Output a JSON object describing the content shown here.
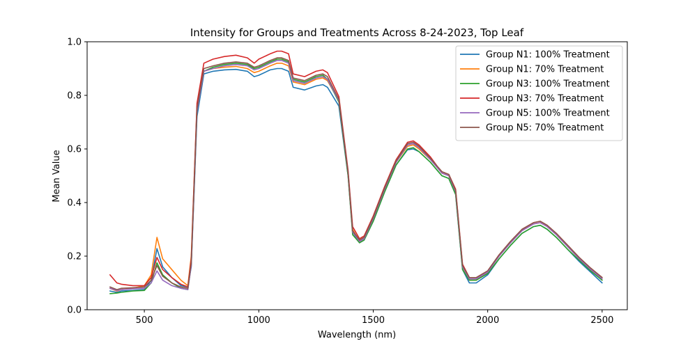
{
  "chart_data": {
    "type": "line",
    "title": "Intensity for Groups and Treatments Across 8-24-2023, Top Leaf",
    "xlabel": "Wavelength (nm)",
    "ylabel": "Mean Value",
    "xlim": [
      250,
      2610
    ],
    "ylim": [
      0,
      1.0
    ],
    "xticks": [
      500,
      1000,
      1500,
      2000,
      2500
    ],
    "yticks": [
      0.0,
      0.2,
      0.4,
      0.6,
      0.8,
      1.0
    ],
    "xtick_labels": [
      "500",
      "1000",
      "1500",
      "2000",
      "2500"
    ],
    "ytick_labels": [
      "0.0",
      "0.2",
      "0.4",
      "0.6",
      "0.8",
      "1.0"
    ],
    "grid": false,
    "legend_position": "top-right",
    "x": [
      350,
      380,
      400,
      450,
      500,
      530,
      555,
      580,
      620,
      660,
      690,
      705,
      730,
      760,
      800,
      850,
      900,
      950,
      980,
      1000,
      1050,
      1080,
      1100,
      1130,
      1150,
      1200,
      1250,
      1280,
      1300,
      1350,
      1390,
      1410,
      1440,
      1460,
      1500,
      1550,
      1600,
      1650,
      1675,
      1700,
      1750,
      1780,
      1800,
      1830,
      1860,
      1890,
      1920,
      1950,
      2000,
      2050,
      2100,
      2150,
      2200,
      2230,
      2260,
      2300,
      2350,
      2400,
      2450,
      2500
    ],
    "series": [
      {
        "name": "Group N1: 100% Treatment",
        "color": "#1f77b4",
        "values": [
          0.07,
          0.065,
          0.07,
          0.072,
          0.075,
          0.11,
          0.228,
          0.16,
          0.12,
          0.09,
          0.085,
          0.16,
          0.72,
          0.88,
          0.89,
          0.895,
          0.897,
          0.89,
          0.87,
          0.875,
          0.895,
          0.9,
          0.9,
          0.89,
          0.83,
          0.82,
          0.835,
          0.84,
          0.83,
          0.76,
          0.5,
          0.29,
          0.25,
          0.26,
          0.33,
          0.44,
          0.54,
          0.597,
          0.6,
          0.59,
          0.55,
          0.52,
          0.5,
          0.49,
          0.43,
          0.15,
          0.1,
          0.1,
          0.13,
          0.19,
          0.24,
          0.285,
          0.31,
          0.315,
          0.3,
          0.27,
          0.225,
          0.18,
          0.14,
          0.1
        ]
      },
      {
        "name": "Group N1: 70% Treatment",
        "color": "#ff7f0e",
        "values": [
          0.08,
          0.07,
          0.075,
          0.08,
          0.09,
          0.13,
          0.27,
          0.19,
          0.15,
          0.11,
          0.09,
          0.2,
          0.76,
          0.89,
          0.9,
          0.905,
          0.908,
          0.9,
          0.885,
          0.89,
          0.91,
          0.92,
          0.92,
          0.91,
          0.85,
          0.84,
          0.86,
          0.865,
          0.855,
          0.78,
          0.51,
          0.3,
          0.255,
          0.265,
          0.34,
          0.45,
          0.55,
          0.61,
          0.615,
          0.6,
          0.56,
          0.53,
          0.51,
          0.5,
          0.44,
          0.16,
          0.11,
          0.11,
          0.14,
          0.2,
          0.25,
          0.295,
          0.32,
          0.325,
          0.31,
          0.28,
          0.235,
          0.19,
          0.15,
          0.11
        ]
      },
      {
        "name": "Group N3: 100% Treatment",
        "color": "#2ca02c",
        "values": [
          0.06,
          0.062,
          0.065,
          0.07,
          0.072,
          0.1,
          0.175,
          0.13,
          0.1,
          0.08,
          0.075,
          0.17,
          0.74,
          0.89,
          0.905,
          0.915,
          0.92,
          0.915,
          0.9,
          0.905,
          0.925,
          0.935,
          0.935,
          0.925,
          0.86,
          0.85,
          0.87,
          0.875,
          0.86,
          0.775,
          0.5,
          0.28,
          0.25,
          0.26,
          0.33,
          0.44,
          0.54,
          0.6,
          0.605,
          0.59,
          0.55,
          0.52,
          0.5,
          0.49,
          0.43,
          0.15,
          0.11,
          0.11,
          0.135,
          0.19,
          0.24,
          0.285,
          0.31,
          0.315,
          0.3,
          0.27,
          0.225,
          0.185,
          0.145,
          0.11
        ]
      },
      {
        "name": "Group N3: 70% Treatment",
        "color": "#d62728",
        "values": [
          0.13,
          0.1,
          0.095,
          0.09,
          0.09,
          0.12,
          0.195,
          0.15,
          0.12,
          0.095,
          0.085,
          0.19,
          0.77,
          0.92,
          0.935,
          0.945,
          0.95,
          0.94,
          0.92,
          0.935,
          0.955,
          0.965,
          0.965,
          0.955,
          0.88,
          0.87,
          0.89,
          0.895,
          0.885,
          0.795,
          0.52,
          0.31,
          0.265,
          0.275,
          0.35,
          0.46,
          0.56,
          0.625,
          0.63,
          0.615,
          0.57,
          0.535,
          0.515,
          0.505,
          0.45,
          0.17,
          0.12,
          0.12,
          0.145,
          0.205,
          0.255,
          0.3,
          0.325,
          0.33,
          0.315,
          0.285,
          0.24,
          0.195,
          0.155,
          0.12
        ]
      },
      {
        "name": "Group N5: 100% Treatment",
        "color": "#9467bd",
        "values": [
          0.08,
          0.072,
          0.075,
          0.078,
          0.08,
          0.1,
          0.145,
          0.11,
          0.09,
          0.08,
          0.075,
          0.165,
          0.74,
          0.89,
          0.9,
          0.91,
          0.915,
          0.91,
          0.895,
          0.9,
          0.92,
          0.93,
          0.93,
          0.92,
          0.855,
          0.845,
          0.865,
          0.87,
          0.86,
          0.78,
          0.51,
          0.29,
          0.255,
          0.265,
          0.34,
          0.45,
          0.55,
          0.615,
          0.62,
          0.605,
          0.56,
          0.53,
          0.51,
          0.5,
          0.44,
          0.16,
          0.115,
          0.115,
          0.14,
          0.2,
          0.25,
          0.295,
          0.32,
          0.325,
          0.31,
          0.28,
          0.235,
          0.19,
          0.15,
          0.115
        ]
      },
      {
        "name": "Group N5: 70% Treatment",
        "color": "#8c564b",
        "values": [
          0.085,
          0.075,
          0.08,
          0.082,
          0.085,
          0.11,
          0.165,
          0.125,
          0.1,
          0.085,
          0.08,
          0.175,
          0.75,
          0.9,
          0.91,
          0.92,
          0.925,
          0.92,
          0.905,
          0.91,
          0.93,
          0.94,
          0.94,
          0.93,
          0.865,
          0.855,
          0.875,
          0.88,
          0.87,
          0.785,
          0.51,
          0.295,
          0.26,
          0.27,
          0.345,
          0.455,
          0.555,
          0.62,
          0.625,
          0.61,
          0.565,
          0.535,
          0.515,
          0.505,
          0.445,
          0.165,
          0.12,
          0.12,
          0.145,
          0.205,
          0.255,
          0.3,
          0.325,
          0.33,
          0.315,
          0.285,
          0.24,
          0.195,
          0.155,
          0.12
        ]
      }
    ]
  }
}
